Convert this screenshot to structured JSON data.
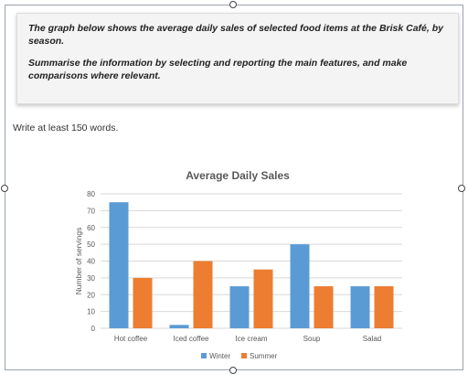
{
  "prompt": {
    "paragraph1": "The graph below shows the average daily sales of selected food items at the Brisk Café, by season.",
    "paragraph2": "Summarise the information by selecting and reporting the main features, and make comparisons where relevant."
  },
  "instruction": "Write at least 150 words.",
  "colors": {
    "winter": "#5b9bd5",
    "summer": "#ed7d31",
    "grid": "#d9d9d9",
    "title": "#595959"
  },
  "chart_data": {
    "type": "bar",
    "title": "Average Daily Sales",
    "xlabel": "",
    "ylabel": "Number of servings",
    "categories": [
      "Hot coffee",
      "Iced coffee",
      "Ice cream",
      "Soup",
      "Salad"
    ],
    "series": [
      {
        "name": "Winter",
        "values": [
          75,
          2,
          25,
          50,
          25
        ]
      },
      {
        "name": "Summer",
        "values": [
          30,
          40,
          35,
          25,
          25
        ]
      }
    ],
    "ylim": [
      0,
      80
    ],
    "yticks": [
      0,
      10,
      20,
      30,
      40,
      50,
      60,
      70,
      80
    ],
    "grid": true,
    "legend": "bottom"
  }
}
